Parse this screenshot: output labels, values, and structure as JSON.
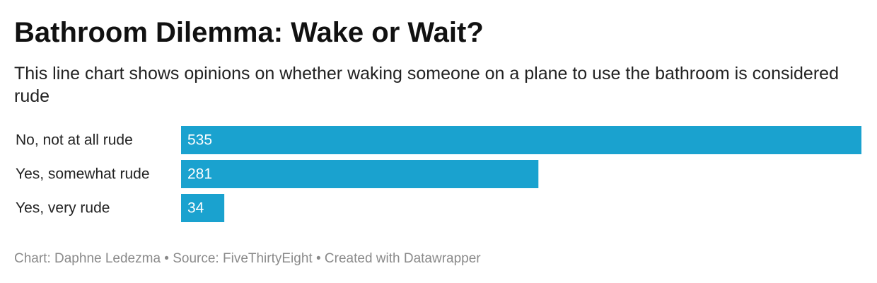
{
  "title": "Bathroom Dilemma: Wake or Wait?",
  "subtitle": "This line chart shows opinions on whether waking someone on a plane to use the bathroom is considered rude",
  "footer": {
    "chart_credit": "Chart: Daphne Ledezma",
    "separator": " • ",
    "source": "Source: FiveThirtyEight",
    "created_with": "Created with Datawrapper"
  },
  "colors": {
    "bar": "#1aa2cf",
    "bar_label": "#ffffff",
    "category_label": "#222222",
    "footer": "#8a8a8a"
  },
  "chart_data": {
    "type": "bar",
    "orientation": "horizontal",
    "categories": [
      "No, not at all rude",
      "Yes, somewhat rude",
      "Yes, very rude"
    ],
    "values": [
      535,
      281,
      34
    ],
    "xlim": [
      0,
      535
    ],
    "data_labels": [
      "535",
      "281",
      "34"
    ],
    "grid": false,
    "legend": "none"
  }
}
